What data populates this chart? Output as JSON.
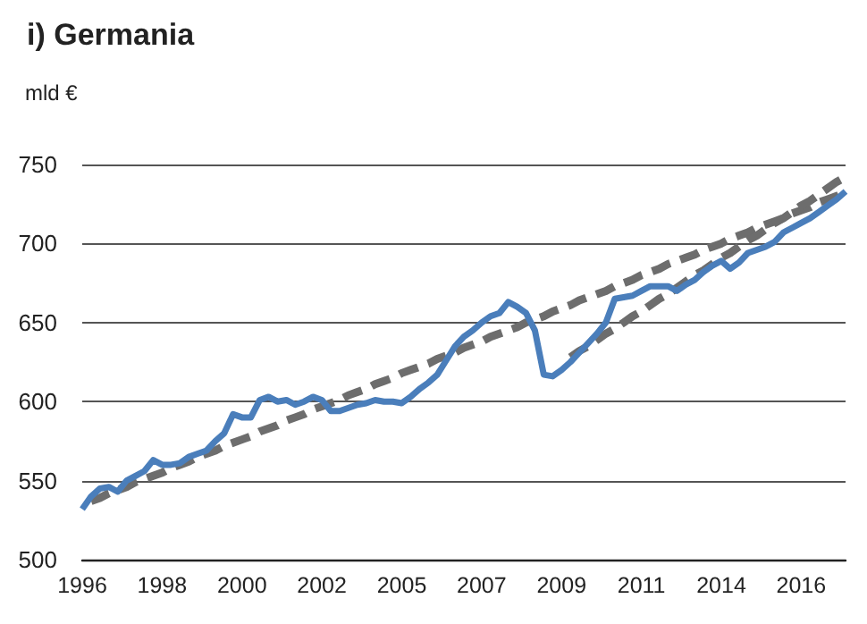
{
  "chart_data": {
    "type": "line",
    "title": "i) Germania",
    "ylabel": "mld €",
    "categories": [
      "1996",
      null,
      null,
      null,
      null,
      null,
      null,
      null,
      null,
      "1998",
      null,
      null,
      null,
      null,
      null,
      null,
      null,
      null,
      "2000",
      null,
      null,
      null,
      null,
      null,
      null,
      null,
      null,
      "2002",
      null,
      null,
      null,
      null,
      null,
      null,
      null,
      null,
      "2005",
      null,
      null,
      null,
      null,
      null,
      null,
      null,
      null,
      "2007",
      null,
      null,
      null,
      null,
      null,
      null,
      null,
      null,
      "2009",
      null,
      null,
      null,
      null,
      null,
      null,
      null,
      null,
      "2011",
      null,
      null,
      null,
      null,
      null,
      null,
      null,
      null,
      "2014",
      null,
      null,
      null,
      null,
      null,
      null,
      null,
      null,
      "2016",
      null,
      null,
      null,
      null,
      null
    ],
    "series": [
      {
        "color": "#4a7ebb",
        "line_style": "solid",
        "values": [
          532,
          540,
          545,
          546,
          543,
          550,
          553,
          556,
          563,
          560,
          560,
          561,
          565,
          567,
          569,
          575,
          580,
          592,
          590,
          590,
          601,
          603,
          600,
          601,
          598,
          600,
          603,
          601,
          594,
          594,
          596,
          598,
          599,
          601,
          600,
          600,
          599,
          603,
          608,
          612,
          617,
          626,
          635,
          641,
          645,
          650,
          654,
          656,
          663,
          660,
          656,
          645,
          617,
          616,
          620,
          625,
          631,
          637,
          643,
          650,
          665,
          666,
          667,
          670,
          673,
          673,
          673,
          670,
          674,
          677,
          682,
          686,
          689,
          684,
          688,
          694,
          696,
          698,
          701,
          707,
          710,
          713,
          716,
          720,
          724,
          728,
          733
        ]
      },
      {
        "color": "#6d6d6d",
        "line_style": "dashed",
        "values": [
          null,
          537,
          539,
          542,
          544,
          546,
          549,
          551,
          553,
          555,
          558,
          560,
          562,
          565,
          567,
          569,
          572,
          574,
          576,
          578,
          581,
          583,
          585,
          588,
          590,
          592,
          595,
          597,
          599,
          601,
          604,
          606,
          608,
          611,
          613,
          615,
          618,
          620,
          622,
          624,
          627,
          629,
          631,
          634,
          636,
          638,
          641,
          643,
          645,
          647,
          650,
          652,
          654,
          657,
          659,
          661,
          664,
          666,
          668,
          670,
          673,
          675,
          677,
          680,
          682,
          684,
          687,
          689,
          691,
          693,
          696,
          698,
          700,
          703,
          705,
          707,
          710,
          712,
          714,
          716,
          719,
          721,
          723,
          726,
          728,
          730,
          733
        ]
      },
      {
        "color": "#6d6d6d",
        "line_style": "dashed",
        "values": [
          null,
          null,
          null,
          null,
          null,
          null,
          null,
          null,
          null,
          null,
          null,
          null,
          null,
          null,
          null,
          null,
          null,
          null,
          null,
          null,
          null,
          null,
          null,
          null,
          null,
          null,
          null,
          null,
          null,
          null,
          null,
          null,
          null,
          null,
          null,
          null,
          null,
          null,
          null,
          null,
          null,
          null,
          null,
          null,
          null,
          null,
          null,
          null,
          null,
          null,
          null,
          null,
          null,
          null,
          null,
          628,
          632,
          635,
          639,
          643,
          646,
          650,
          654,
          657,
          661,
          665,
          668,
          672,
          676,
          680,
          683,
          687,
          691,
          694,
          698,
          702,
          705,
          709,
          713,
          716,
          720,
          724,
          727,
          731,
          735,
          739,
          742
        ]
      }
    ],
    "ylim": [
      500,
      750
    ],
    "yticks": [
      500,
      550,
      600,
      650,
      700,
      750
    ],
    "grid": "y",
    "marker": "none"
  }
}
